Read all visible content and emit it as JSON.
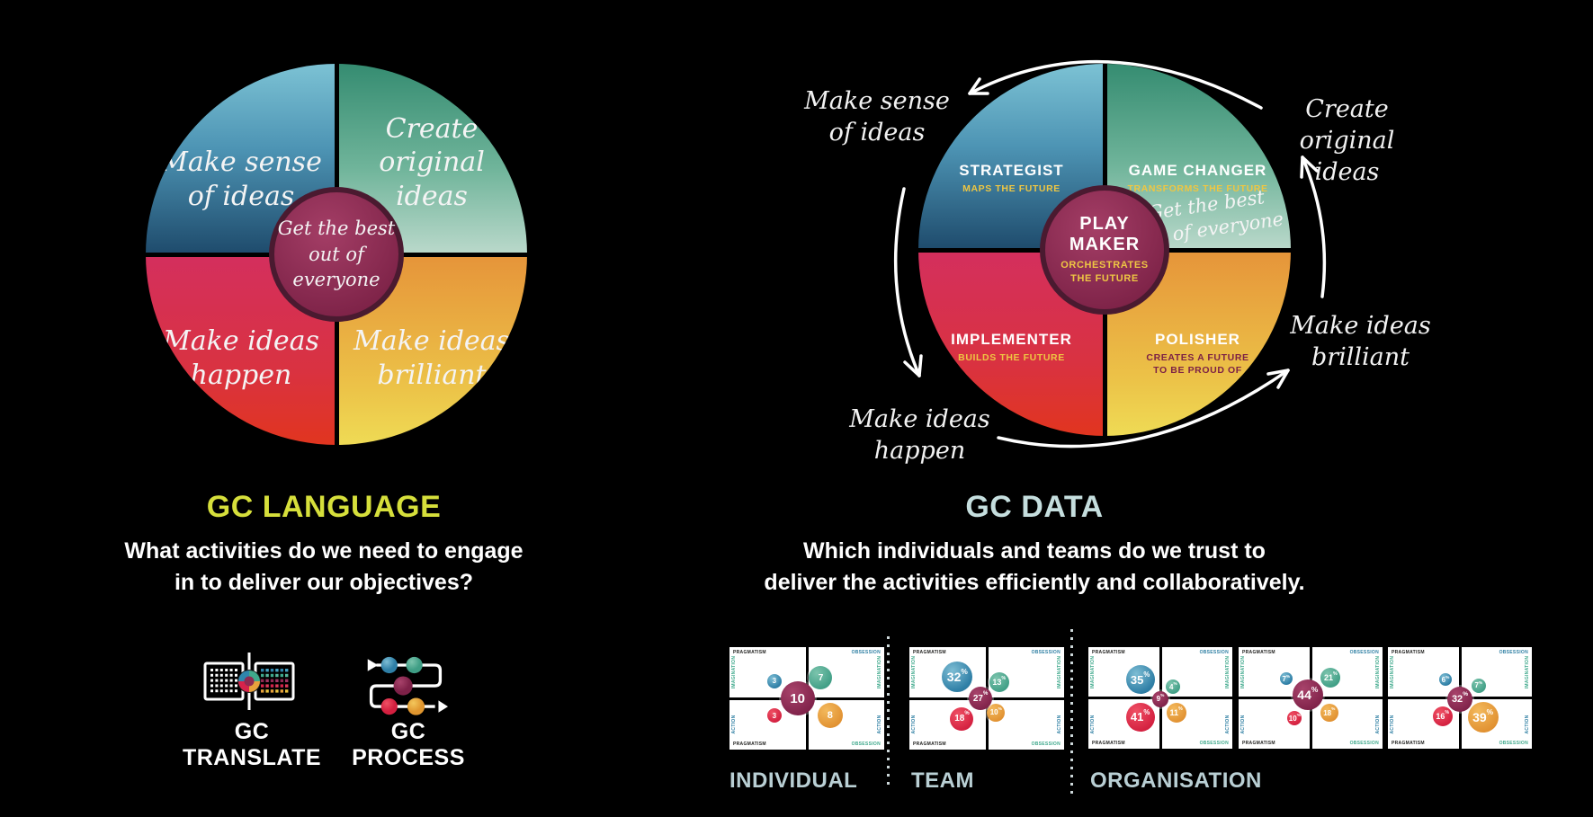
{
  "left_panel": {
    "title": "GC LANGUAGE",
    "question": "What activities do we need to engage\nin to deliver our objectives?",
    "wheel": {
      "quadrants": {
        "top_left": "Make sense\nof ideas",
        "top_right": "Create original\nideas",
        "bottom_left": "Make ideas\nhappen",
        "bottom_right": "Make ideas\nbrilliant"
      },
      "center": "Get the best\nout of everyone"
    },
    "tools": [
      {
        "name": "GC\nTRANSLATE",
        "icon": "gc-translate-icon"
      },
      {
        "name": "GC\nPROCESS",
        "icon": "gc-process-icon"
      }
    ]
  },
  "right_panel": {
    "title": "GC DATA",
    "question": "Which individuals and teams do we trust to\ndeliver the activities efficiently and collaboratively.",
    "wheel": {
      "roles": {
        "top_left": {
          "name": "STRATEGIST",
          "tagline": "MAPS THE FUTURE"
        },
        "top_right": {
          "name": "GAME CHANGER",
          "tagline": "TRANSFORMS THE FUTURE"
        },
        "bottom_left": {
          "name": "IMPLEMENTER",
          "tagline": "BUILDS THE FUTURE"
        },
        "bottom_right": {
          "name": "POLISHER",
          "tagline": "CREATES A FUTURE\nTO BE PROUD OF"
        },
        "center": {
          "name": "PLAY MAKER",
          "tagline": "ORCHESTRATES\nTHE FUTURE"
        }
      },
      "center_note": "Get the best\nout of everyone",
      "outer_labels": {
        "top_left": "Make sense\nof ideas",
        "top_right": "Create original\nideas",
        "right": "Make ideas\nbrilliant",
        "bottom_left": "Make ideas\nhappen"
      }
    },
    "groups": [
      "INDIVIDUAL",
      "TEAM",
      "ORGANISATION"
    ]
  },
  "colors": {
    "background": "#000000",
    "title_language": "#d6df3b",
    "title_data": "#c5dede",
    "quadrant_blue": "#4d94b4",
    "quadrant_green": "#6fb49a",
    "quadrant_red": "#d93241",
    "quadrant_yellow": "#ecc348",
    "hub_maroon": "#8e2a52",
    "hub_ring": "#4a1a30",
    "tagline_yellow": "#eec643",
    "polisher_tagline": "#7c2145",
    "group_label": "#b9cfd4",
    "arrow": "#ffffff"
  },
  "chart_data": [
    {
      "type": "bubble-quadrant",
      "group": "INDIVIDUAL",
      "axes": {
        "left": "PRAGMATISM",
        "right": "OBSESSION",
        "top": "IMAGINATION",
        "bottom": "ACTION"
      },
      "bubbles": [
        {
          "role": "STRATEGIST",
          "value": "3",
          "x": 29,
          "y": 33,
          "r": 8
        },
        {
          "role": "GAME CHANGER",
          "value": "7",
          "x": 59,
          "y": 30,
          "r": 13
        },
        {
          "role": "IMPLEMENTER",
          "value": "3",
          "x": 29,
          "y": 67,
          "r": 8
        },
        {
          "role": "POLISHER",
          "value": "8",
          "x": 65,
          "y": 67,
          "r": 14
        },
        {
          "role": "PLAY MAKER",
          "value": "10",
          "x": 44,
          "y": 50,
          "r": 19
        }
      ]
    },
    {
      "type": "bubble-quadrant",
      "group": "TEAM",
      "axes": {
        "left": "PRAGMATISM",
        "right": "OBSESSION",
        "top": "IMAGINATION",
        "bottom": "ACTION"
      },
      "bubbles": [
        {
          "role": "STRATEGIST",
          "value": "32%",
          "x": 31,
          "y": 29,
          "r": 17
        },
        {
          "role": "GAME CHANGER",
          "value": "13%",
          "x": 58,
          "y": 34,
          "r": 11
        },
        {
          "role": "IMPLEMENTER",
          "value": "18%",
          "x": 34,
          "y": 70,
          "r": 13
        },
        {
          "role": "POLISHER",
          "value": "10%",
          "x": 56,
          "y": 64,
          "r": 10
        },
        {
          "role": "PLAY MAKER",
          "value": "27%",
          "x": 46,
          "y": 50,
          "r": 13
        }
      ]
    },
    {
      "type": "bubble-quadrant",
      "group": "ORGANISATION",
      "axes": {
        "left": "PRAGMATISM",
        "right": "OBSESSION",
        "top": "IMAGINATION",
        "bottom": "ACTION"
      },
      "bubbles": [
        {
          "role": "STRATEGIST",
          "value": "35%",
          "x": 36,
          "y": 32,
          "r": 16
        },
        {
          "role": "GAME CHANGER",
          "value": "4%",
          "x": 59,
          "y": 39,
          "r": 8
        },
        {
          "role": "IMPLEMENTER",
          "value": "41%",
          "x": 36,
          "y": 69,
          "r": 16
        },
        {
          "role": "POLISHER",
          "value": "11%",
          "x": 61,
          "y": 65,
          "r": 11
        },
        {
          "role": "PLAY MAKER",
          "value": "9%",
          "x": 50,
          "y": 51,
          "r": 9
        }
      ]
    },
    {
      "type": "bubble-quadrant",
      "group": "ORGANISATION",
      "axes": {
        "left": "PRAGMATISM",
        "right": "OBSESSION",
        "top": "IMAGINATION",
        "bottom": "ACTION"
      },
      "bubbles": [
        {
          "role": "STRATEGIST",
          "value": "7%",
          "x": 33,
          "y": 31,
          "r": 7
        },
        {
          "role": "GAME CHANGER",
          "value": "21%",
          "x": 64,
          "y": 30,
          "r": 11
        },
        {
          "role": "IMPLEMENTER",
          "value": "10%",
          "x": 39,
          "y": 70,
          "r": 8
        },
        {
          "role": "POLISHER",
          "value": "18%",
          "x": 63,
          "y": 65,
          "r": 10
        },
        {
          "role": "PLAY MAKER",
          "value": "44%",
          "x": 48,
          "y": 47,
          "r": 17
        }
      ]
    },
    {
      "type": "bubble-quadrant",
      "group": "ORGANISATION",
      "axes": {
        "left": "PRAGMATISM",
        "right": "OBSESSION",
        "top": "IMAGINATION",
        "bottom": "ACTION"
      },
      "bubbles": [
        {
          "role": "STRATEGIST",
          "value": "6%",
          "x": 40,
          "y": 32,
          "r": 7
        },
        {
          "role": "GAME CHANGER",
          "value": "7%",
          "x": 63,
          "y": 38,
          "r": 8
        },
        {
          "role": "IMPLEMENTER",
          "value": "16%",
          "x": 38,
          "y": 68,
          "r": 11
        },
        {
          "role": "POLISHER",
          "value": "39%",
          "x": 66,
          "y": 69,
          "r": 17
        },
        {
          "role": "PLAY MAKER",
          "value": "32%",
          "x": 50,
          "y": 51,
          "r": 14
        }
      ]
    }
  ]
}
